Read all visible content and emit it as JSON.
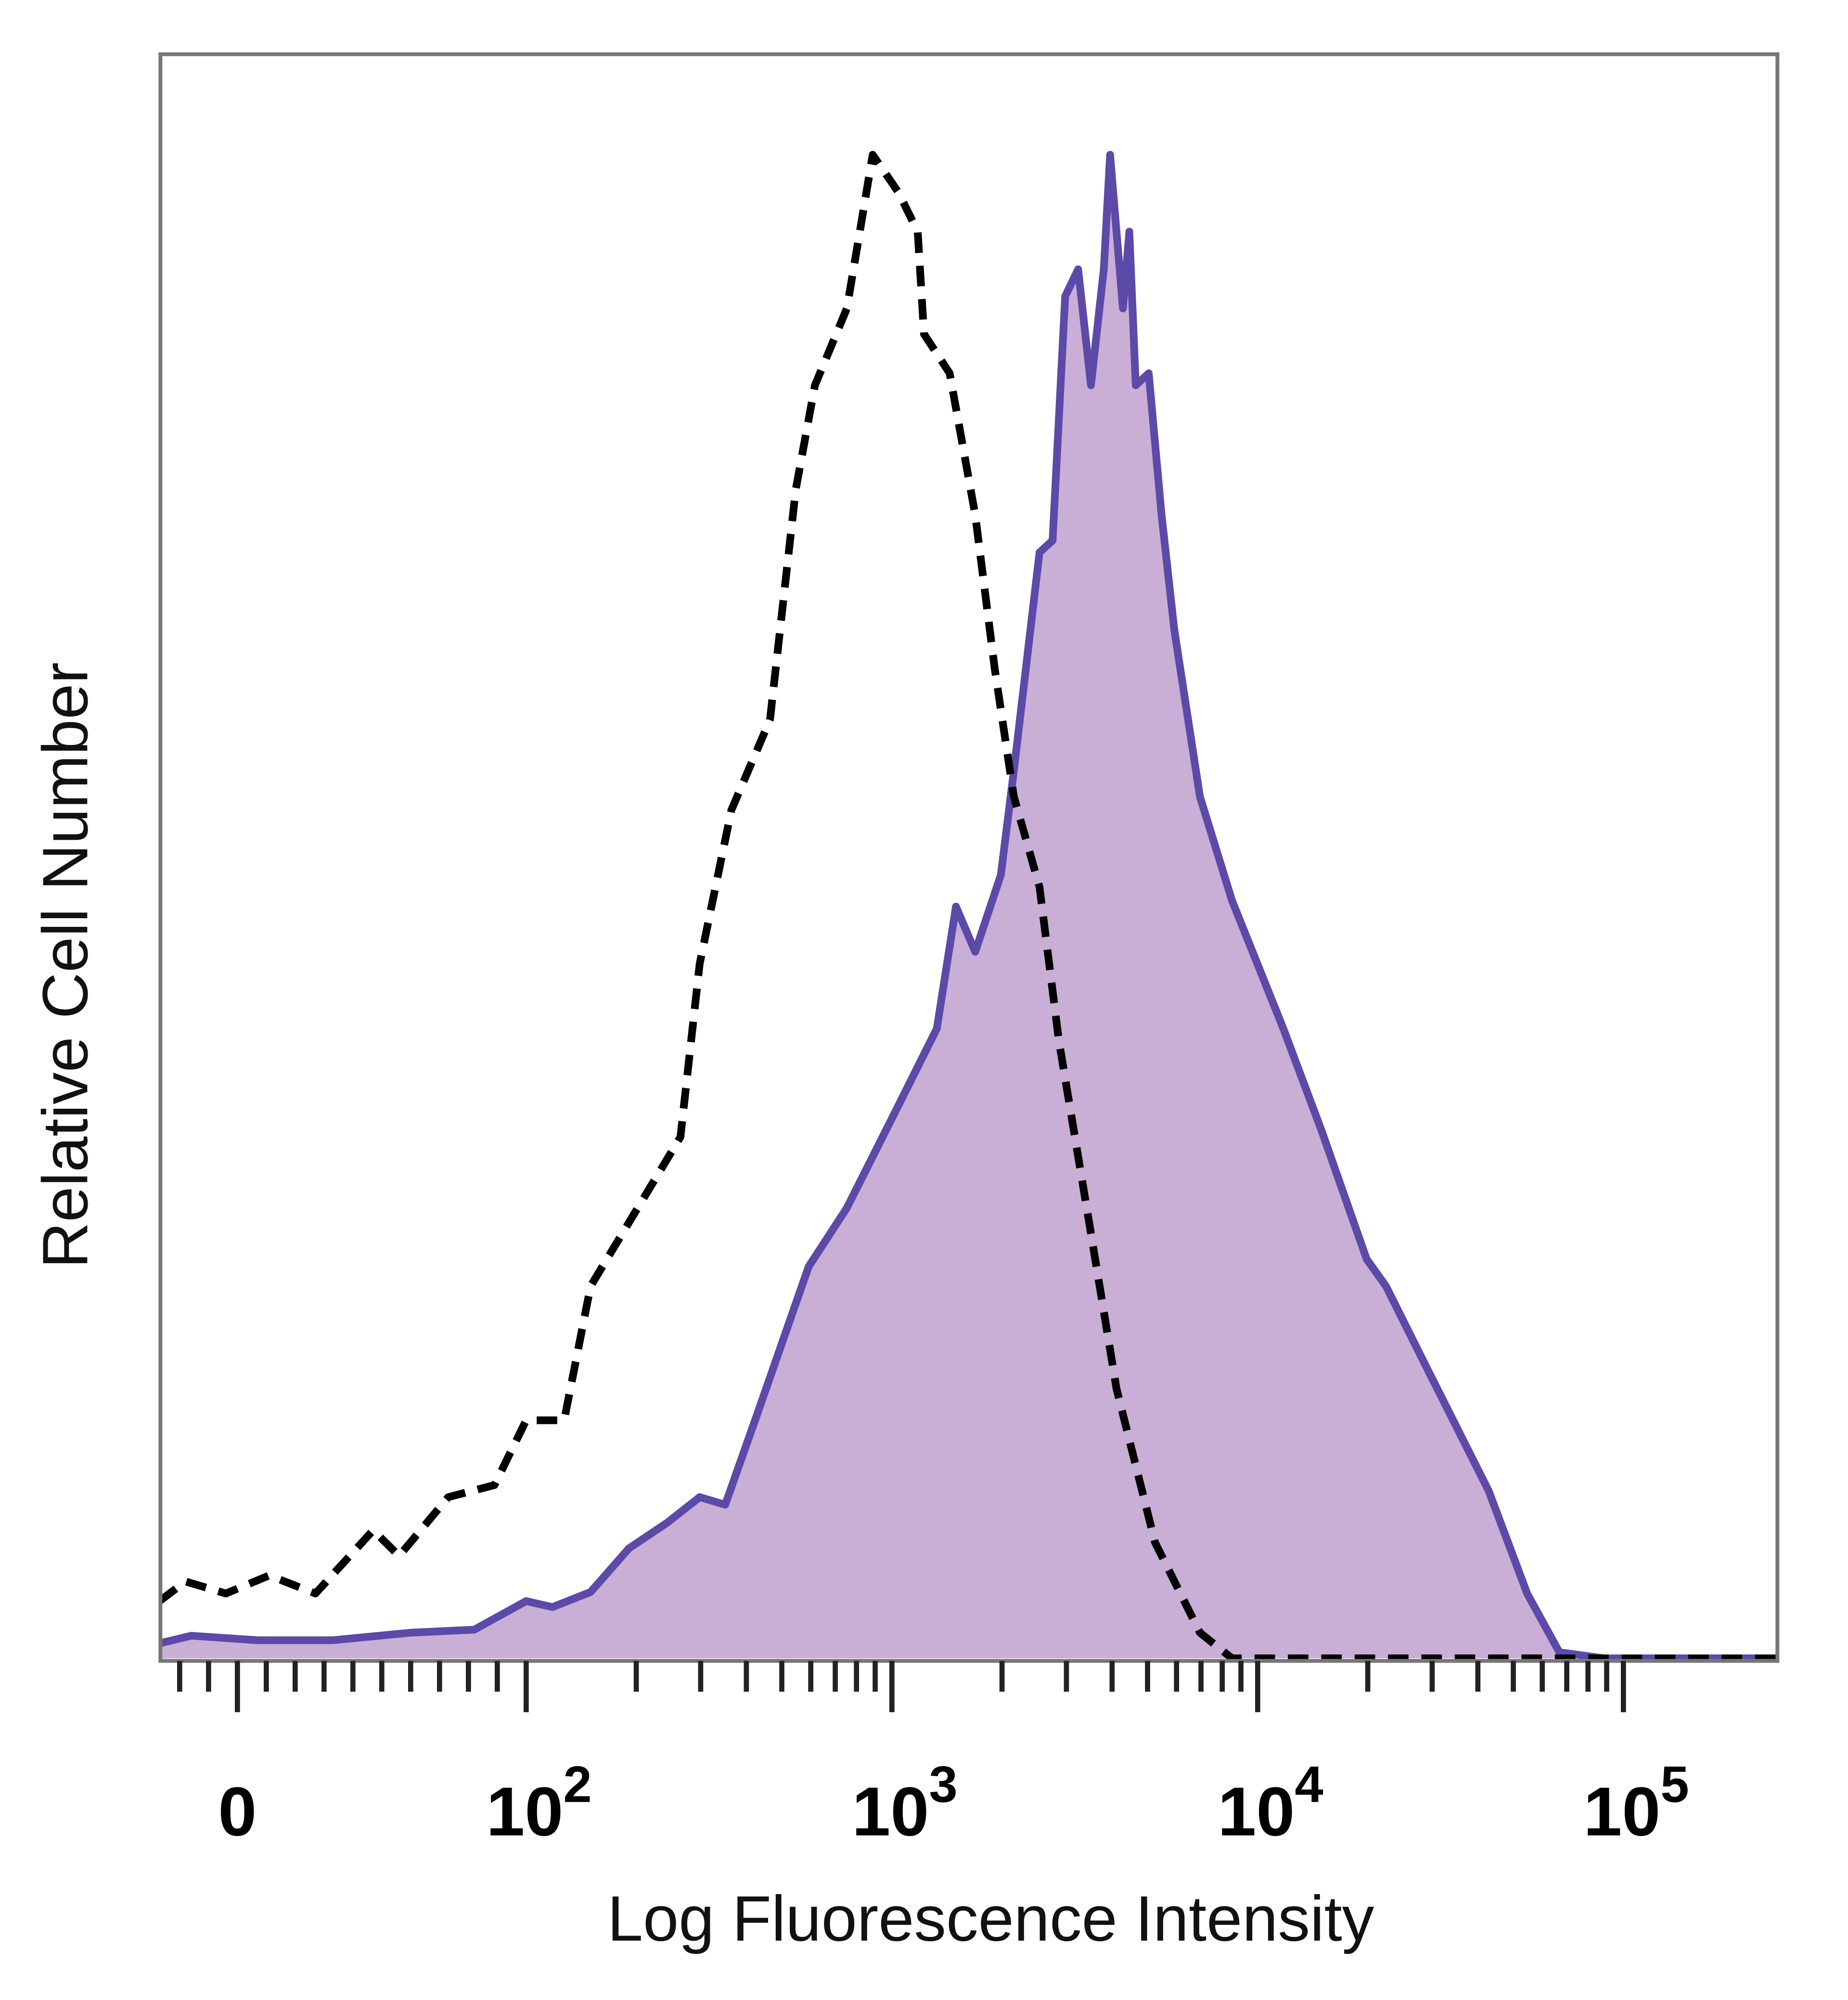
{
  "chart_data": {
    "type": "area",
    "title": "",
    "xlabel": "Log Fluorescence Intensity",
    "ylabel": "Relative Cell Number",
    "x_scale": "biexponential (linear near 0, log above 10^2)",
    "xlim": [
      -27,
      263600
    ],
    "ylim": [
      0,
      100
    ],
    "grid": false,
    "legend": "none",
    "x_ticks": [
      {
        "value": 0,
        "base": "0",
        "exp": ""
      },
      {
        "value": 100,
        "base": "10",
        "exp": "2"
      },
      {
        "value": 1000,
        "base": "10",
        "exp": "3"
      },
      {
        "value": 10000,
        "base": "10",
        "exp": "4"
      },
      {
        "value": 100000,
        "base": "10",
        "exp": "5"
      }
    ],
    "colors": {
      "stained_line": "#5b4aa8",
      "stained_fill": "#c9afd6",
      "control_line": "#000000",
      "frame": "#777777"
    },
    "series": [
      {
        "style": "filled solid",
        "x": [
          -27,
          -16,
          7,
          33,
          60,
          82,
          100,
          118,
          150,
          191,
          243,
          298,
          350,
          428,
          592,
          753,
          1042,
          1327,
          1497,
          1690,
          1986,
          2154,
          2533,
          2750,
          2977,
          3229,
          3500,
          3795,
          3949,
          4281,
          4458,
          4641,
          5035,
          5459,
          5916,
          6950,
          8511,
          11750,
          14970,
          19860,
          22440,
          28570,
          42850,
          54550,
          66830,
          88500,
          263600
        ],
        "y": [
          1.0,
          1.5,
          1.2,
          1.2,
          1.7,
          1.9,
          3.8,
          3.4,
          4.4,
          7.3,
          9.0,
          10.7,
          10.2,
          16.2,
          26.0,
          29.9,
          36.7,
          41.8,
          49.9,
          46.9,
          52.0,
          58.9,
          73.4,
          74.2,
          90.4,
          92.2,
          84.5,
          92.2,
          99.8,
          89.6,
          94.7,
          84.5,
          85.3,
          75.9,
          68.3,
          57.2,
          50.3,
          41.8,
          35.0,
          26.5,
          24.7,
          19.6,
          11.1,
          4.3,
          0.4,
          0,
          0
        ]
      },
      {
        "style": "dashed",
        "x": [
          -27,
          -18,
          -4,
          11,
          27,
          47,
          56,
          73,
          89,
          100,
          127,
          150,
          264,
          298,
          364,
          464,
          546,
          616,
          753,
          817,
          886,
          1042,
          1176,
          1224,
          1439,
          1690,
          1910,
          2154,
          2533,
          2860,
          3500,
          4111,
          5240,
          6950,
          8511,
          263600
        ],
        "y": [
          3.8,
          5.1,
          4.3,
          5.5,
          4.3,
          8.5,
          6.8,
          10.7,
          11.5,
          15.8,
          15.8,
          24.7,
          34.6,
          46.1,
          56.3,
          62.3,
          77.6,
          84.5,
          89.6,
          94.7,
          99.8,
          97.3,
          94.7,
          87.9,
          85.3,
          75.9,
          65.7,
          57.2,
          51.2,
          41.0,
          28.2,
          17.9,
          7.7,
          1.7,
          0,
          0
        ]
      }
    ]
  }
}
